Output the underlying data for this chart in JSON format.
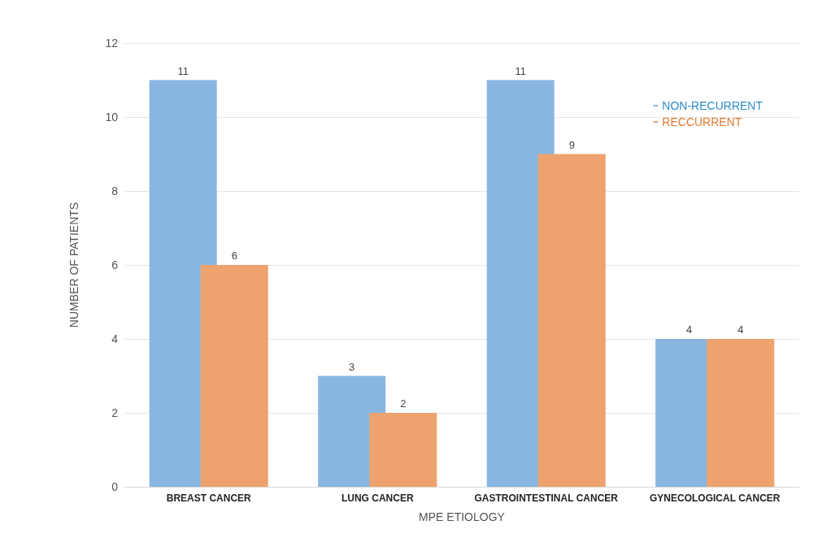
{
  "chart_data": {
    "type": "bar",
    "xlabel": "MPE ETIOLOGY",
    "ylabel": "NUMBER OF PATIENTS",
    "categories": [
      "BREAST CANCER",
      "LUNG CANCER",
      "GASTROINTESTINAL CANCER",
      "GYNECOLOGICAL CANCER"
    ],
    "series": [
      {
        "name": "NON-RECURRENT",
        "color": "#88b6e0",
        "values": [
          11,
          3,
          11,
          4
        ]
      },
      {
        "name": "RECCURRENT",
        "color": "#eea36f",
        "values": [
          6,
          2,
          9,
          4
        ]
      }
    ],
    "ylim": [
      0,
      12
    ],
    "yticks": [
      0,
      2,
      4,
      6,
      8,
      10,
      12
    ],
    "grid": "y",
    "legend": "top right",
    "data_labels": true
  }
}
